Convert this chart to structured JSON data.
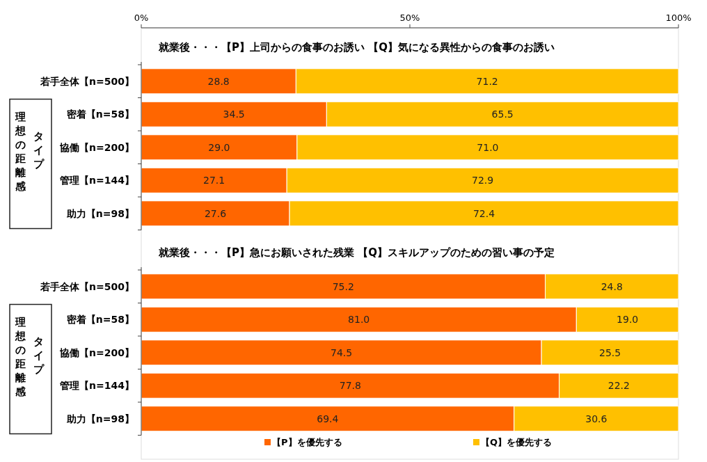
{
  "chart_data": [
    {
      "type": "bar",
      "orientation": "horizontal",
      "stacked": true,
      "title": "就業後・・・【P】上司からの食事のお誘い 【Q】気になる異性からの食事のお誘い",
      "categories": [
        "若手全体【n=500】",
        "密着【n=58】",
        "協働【n=200】",
        "管理【n=144】",
        "助力【n=98】"
      ],
      "series": [
        {
          "color": "#ff6600",
          "values": [
            28.8,
            34.5,
            29.0,
            27.1,
            27.6
          ],
          "value_labels": [
            "28.8",
            "34.5",
            "29.0",
            "27.1",
            "27.6"
          ]
        },
        {
          "color": "#ffc000",
          "values": [
            71.2,
            65.5,
            71.0,
            72.9,
            72.4
          ],
          "value_labels": [
            "71.2",
            "65.5",
            "71.0",
            "72.9",
            "72.4"
          ]
        }
      ],
      "xlim": [
        0,
        100
      ],
      "xticks": [
        {
          "value": 0,
          "label": "0%"
        },
        {
          "value": 50,
          "label": "50%"
        },
        {
          "value": 100,
          "label": "100%"
        }
      ],
      "annotations": [
        "理想の距離感",
        "タイプ"
      ],
      "legend": false
    },
    {
      "type": "bar",
      "orientation": "horizontal",
      "stacked": true,
      "title": "就業後・・・【P】急にお願いされた残業 【Q】スキルアップのための習い事の予定",
      "categories": [
        "若手全体【n=500】",
        "密着【n=58】",
        "協働【n=200】",
        "管理【n=144】",
        "助力【n=98】"
      ],
      "series": [
        {
          "name": "【P】を優先する",
          "color": "#ff6600",
          "values": [
            75.2,
            81.0,
            74.5,
            77.8,
            69.4
          ],
          "value_labels": [
            "75.2",
            "81.0",
            "74.5",
            "77.8",
            "69.4"
          ]
        },
        {
          "name": "【Q】を優先する",
          "color": "#ffc000",
          "values": [
            24.8,
            19.0,
            25.5,
            22.2,
            30.6
          ],
          "value_labels": [
            "24.8",
            "19.0",
            "25.5",
            "22.2",
            "30.6"
          ]
        }
      ],
      "xlim": [
        0,
        100
      ],
      "tick_labels": false,
      "annotations": [
        "理想の距離感",
        "タイプ"
      ],
      "legend": "bottom"
    }
  ]
}
